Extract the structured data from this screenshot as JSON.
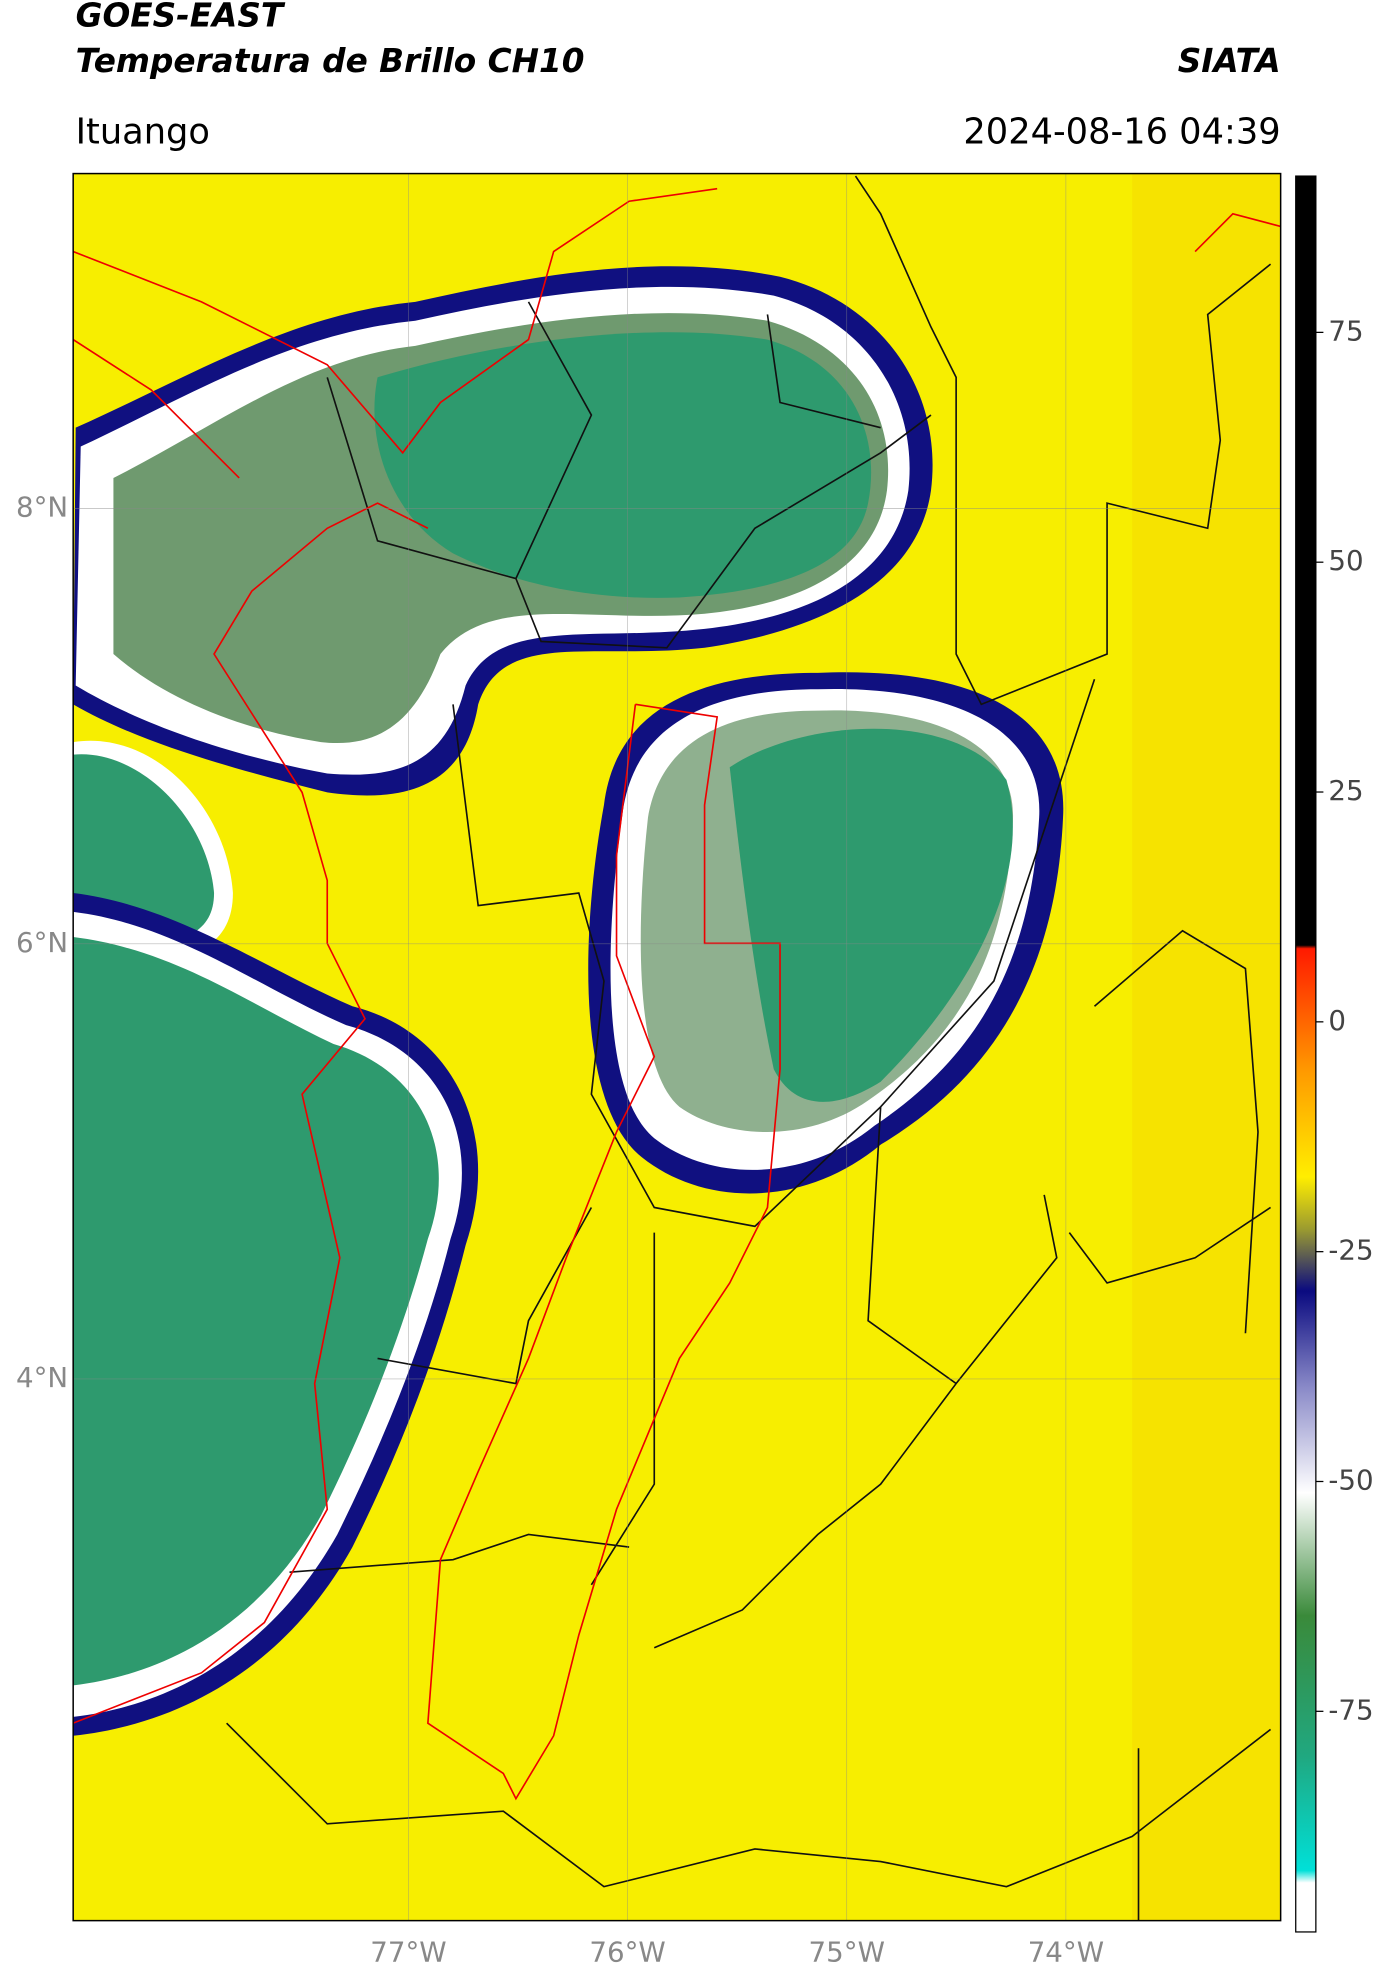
{
  "chart_data": {
    "type": "map",
    "title": "GOES-EAST",
    "subtitle": "Temperatura de Brillo CH10",
    "source": "SIATA",
    "location": "Ituango",
    "timestamp": "2024-08-16 04:39",
    "xlim": [
      -78.53,
      -73.02
    ],
    "xticks": [
      {
        "value": -77,
        "label": "77°W"
      },
      {
        "value": -76,
        "label": "76°W"
      },
      {
        "value": -75,
        "label": "75°W"
      },
      {
        "value": -74,
        "label": "74°W"
      }
    ],
    "ylim": [
      1.51,
      9.54
    ],
    "yticks": [
      {
        "value": 4,
        "label": "4°N"
      },
      {
        "value": 6,
        "label": "6°N"
      },
      {
        "value": 8,
        "label": "8°N"
      }
    ],
    "grid": true,
    "colorbar": {
      "lim": [
        -99,
        92
      ],
      "ticks": [
        -75,
        -50,
        -25,
        0,
        25,
        50,
        75
      ]
    }
  }
}
